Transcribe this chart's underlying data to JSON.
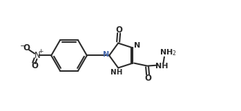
{
  "bg_color": "#ffffff",
  "line_color": "#2a2a2a",
  "blue_color": "#4466aa",
  "bond_lw": 1.5,
  "figsize": [
    3.49,
    1.61
  ],
  "dpi": 100,
  "xlim": [
    0.0,
    7.0
  ],
  "ylim": [
    0.5,
    3.5
  ]
}
